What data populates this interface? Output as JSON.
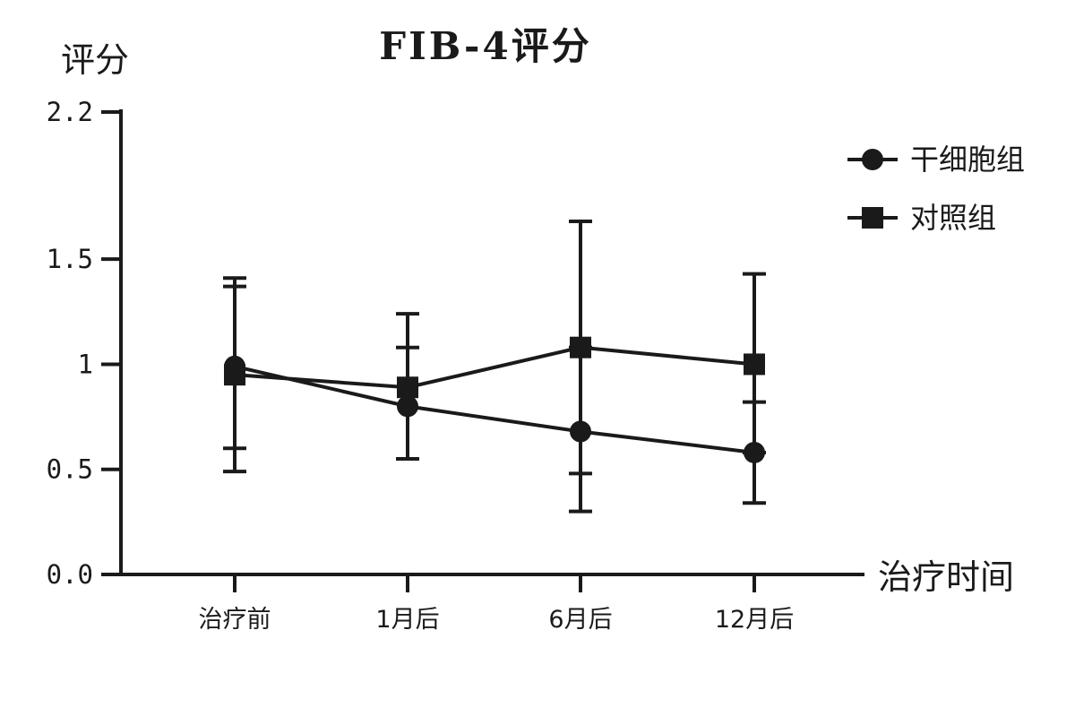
{
  "chart_data": {
    "type": "line",
    "title": "FIB-4评分",
    "ylabel": "评分",
    "xlabel": "治疗时间",
    "categories": [
      "治疗前",
      "1月后",
      "6月后",
      "12月后"
    ],
    "ylim": [
      0,
      2.2
    ],
    "yticks": [
      {
        "value": 0,
        "label": "0.0"
      },
      {
        "value": 0.5,
        "label": "0.5"
      },
      {
        "value": 1,
        "label": "1"
      },
      {
        "value": 1.5,
        "label": "1.5"
      },
      {
        "value": 2.2,
        "label": "2.2"
      }
    ],
    "grid": false,
    "legend_position": "top-right",
    "series": [
      {
        "name": "干细胞组",
        "marker": "circle",
        "values": [
          0.99,
          0.8,
          0.68,
          0.58
        ],
        "error_low": [
          0.6,
          0.55,
          0.3,
          0.34
        ],
        "error_high": [
          1.37,
          1.08,
          1.08,
          0.82
        ]
      },
      {
        "name": "对照组",
        "marker": "square",
        "values": [
          0.95,
          0.89,
          1.08,
          1.0
        ],
        "error_low": [
          0.49,
          0.55,
          0.48,
          0.58
        ],
        "error_high": [
          1.41,
          1.24,
          1.68,
          1.43
        ]
      }
    ],
    "color": "#1a1a1a"
  }
}
